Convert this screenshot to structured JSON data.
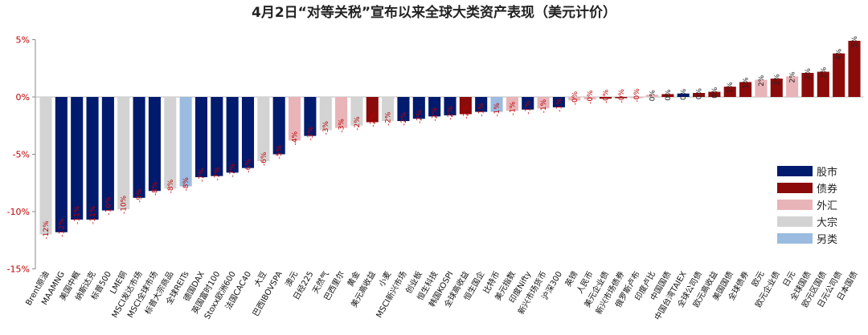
{
  "chart_data": {
    "type": "bar",
    "title": "4月2日“对等关税”宣布以来全球大类资产表现（美元计价）",
    "ylim": [
      -15,
      5
    ],
    "yticks": [
      5,
      0,
      -5,
      -10,
      -15
    ],
    "ytick_labels": [
      "5%",
      "0%",
      "-5%",
      "-10%",
      "-15%"
    ],
    "grid": false,
    "legend_position": "right",
    "legend": [
      {
        "key": "equity",
        "label": "股市",
        "color": "#001a6e"
      },
      {
        "key": "bond",
        "label": "债券",
        "color": "#8b0a0a"
      },
      {
        "key": "fx",
        "label": "外汇",
        "color": "#e8b4b8"
      },
      {
        "key": "commodity",
        "label": "大宗",
        "color": "#d3d3d3"
      },
      {
        "key": "alt",
        "label": "另类",
        "color": "#9bbbe0"
      }
    ],
    "bars": [
      {
        "name": "Brent原油",
        "value": -12.0,
        "label": "-12%",
        "class": "commodity"
      },
      {
        "name": "MAAMNG",
        "value": -11.8,
        "label": "-12%",
        "class": "equity"
      },
      {
        "name": "美国中概",
        "value": -10.7,
        "label": "-11%",
        "class": "equity"
      },
      {
        "name": "纳斯达克",
        "value": -10.7,
        "label": "-11%",
        "class": "equity"
      },
      {
        "name": "标普500",
        "value": -9.9,
        "label": "-10%",
        "class": "equity"
      },
      {
        "name": "LME铜",
        "value": -9.8,
        "label": "-10%",
        "class": "commodity"
      },
      {
        "name": "MSCI发达市场",
        "value": -8.8,
        "label": "-9%",
        "class": "equity"
      },
      {
        "name": "MSCI全球市场",
        "value": -8.2,
        "label": "-8%",
        "class": "equity"
      },
      {
        "name": "标普大宗商品",
        "value": -8.0,
        "label": "-8%",
        "class": "commodity"
      },
      {
        "name": "全球REITs",
        "value": -7.8,
        "label": "-8%",
        "class": "alt"
      },
      {
        "name": "德国DAX",
        "value": -7.0,
        "label": "-7%",
        "class": "equity"
      },
      {
        "name": "英国富时100",
        "value": -6.9,
        "label": "-7%",
        "class": "equity"
      },
      {
        "name": "Stoxx欧洲600",
        "value": -6.6,
        "label": "-7%",
        "class": "equity"
      },
      {
        "name": "法国CAC40",
        "value": -6.2,
        "label": "-6%",
        "class": "equity"
      },
      {
        "name": "大豆",
        "value": -5.6,
        "label": "-6%",
        "class": "commodity"
      },
      {
        "name": "巴西IBOVSPA",
        "value": -5.0,
        "label": "-5%",
        "class": "equity"
      },
      {
        "name": "澳元",
        "value": -3.8,
        "label": "-4%",
        "class": "fx"
      },
      {
        "name": "日经225",
        "value": -3.4,
        "label": "-3%",
        "class": "equity"
      },
      {
        "name": "天然气",
        "value": -2.9,
        "label": "-3%",
        "class": "commodity"
      },
      {
        "name": "巴西里尔",
        "value": -2.7,
        "label": "-3%",
        "class": "fx"
      },
      {
        "name": "黄金",
        "value": -2.5,
        "label": "-2%",
        "class": "commodity"
      },
      {
        "name": "美元高收益",
        "value": -2.2,
        "label": "-2%",
        "class": "bond"
      },
      {
        "name": "小麦",
        "value": -2.1,
        "label": "-2%",
        "class": "commodity"
      },
      {
        "name": "MSCI新兴市场",
        "value": -2.1,
        "label": "-2%",
        "class": "equity"
      },
      {
        "name": "创业板",
        "value": -1.9,
        "label": "-2%",
        "class": "equity"
      },
      {
        "name": "恒生科技",
        "value": -1.7,
        "label": "-2%",
        "class": "equity"
      },
      {
        "name": "韩国KOSPI",
        "value": -1.6,
        "label": "-2%",
        "class": "equity"
      },
      {
        "name": "全球高收益",
        "value": -1.5,
        "label": "-2%",
        "class": "bond"
      },
      {
        "name": "恒生国企",
        "value": -1.3,
        "label": "-1%",
        "class": "equity"
      },
      {
        "name": "比特币",
        "value": -1.3,
        "label": "-1%",
        "class": "alt"
      },
      {
        "name": "美元指数",
        "value": -1.2,
        "label": "-1%",
        "class": "fx"
      },
      {
        "name": "印度Nifty",
        "value": -1.1,
        "label": "-1%",
        "class": "equity"
      },
      {
        "name": "新兴市场货币",
        "value": -1.0,
        "label": "-1%",
        "class": "fx"
      },
      {
        "name": "沪深300",
        "value": -0.9,
        "label": "-1%",
        "class": "equity"
      },
      {
        "name": "英镑",
        "value": -0.3,
        "label": "-0%",
        "class": "fx"
      },
      {
        "name": "人民币",
        "value": -0.2,
        "label": "-0%",
        "class": "fx"
      },
      {
        "name": "美元企业债",
        "value": -0.15,
        "label": "-0%",
        "class": "bond"
      },
      {
        "name": "新兴市场债券",
        "value": -0.1,
        "label": "-0%",
        "class": "bond"
      },
      {
        "name": "俄罗斯卢布",
        "value": -0.05,
        "label": "-0%",
        "class": "fx"
      },
      {
        "name": "印度卢比",
        "value": 0.2,
        "label": "0%",
        "class": "fx"
      },
      {
        "name": "中国国债",
        "value": 0.25,
        "label": "0%",
        "class": "bond"
      },
      {
        "name": "中国台湾TAIEX",
        "value": 0.3,
        "label": "0%",
        "class": "equity"
      },
      {
        "name": "全球公司债",
        "value": 0.35,
        "label": "0%",
        "class": "bond"
      },
      {
        "name": "欧元高收益",
        "value": 0.45,
        "label": "0%",
        "class": "bond"
      },
      {
        "name": "美国国债",
        "value": 0.9,
        "label": "1%",
        "class": "bond"
      },
      {
        "name": "全球债券",
        "value": 1.3,
        "label": "1%",
        "class": "bond"
      },
      {
        "name": "欧元",
        "value": 1.5,
        "label": "2%",
        "class": "fx"
      },
      {
        "name": "欧元企业债",
        "value": 1.6,
        "label": "2%",
        "class": "bond"
      },
      {
        "name": "日元",
        "value": 1.8,
        "label": "2%",
        "class": "fx"
      },
      {
        "name": "全球国债",
        "value": 2.1,
        "label": "2%",
        "class": "bond"
      },
      {
        "name": "欧元区国债",
        "value": 2.2,
        "label": "2%",
        "class": "bond"
      },
      {
        "name": "日元公司债",
        "value": 3.8,
        "label": "4%",
        "class": "bond"
      },
      {
        "name": "日本国债",
        "value": 4.9,
        "label": "5%",
        "class": "bond"
      }
    ]
  }
}
